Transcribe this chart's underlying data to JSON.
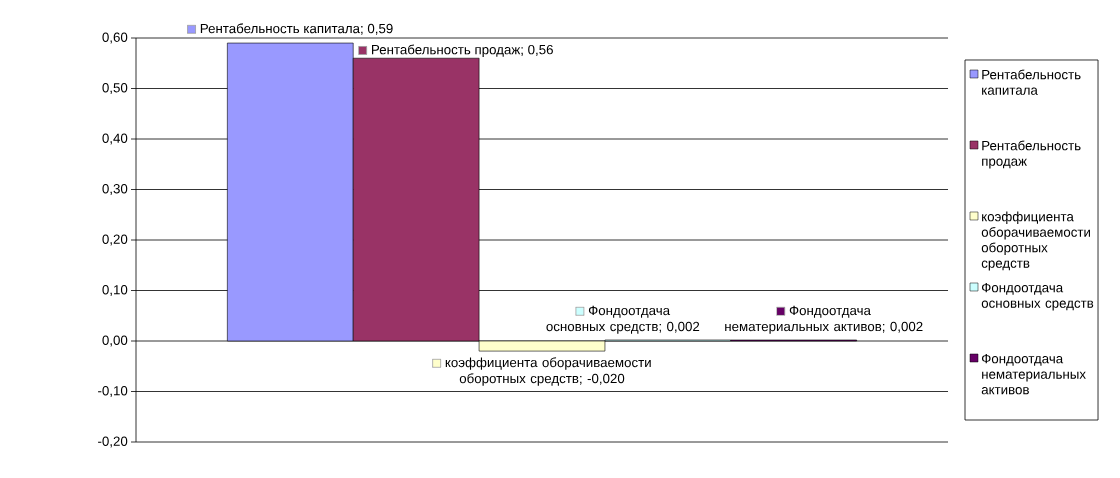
{
  "chart_data": {
    "type": "bar",
    "categories": [
      null
    ],
    "series": [
      {
        "name": "Рентабельность капитала",
        "color": "#9999ff",
        "values": [
          0.59
        ],
        "value_labels": [
          "Рентабельность капитала; 0,59"
        ]
      },
      {
        "name": "Рентабельность продаж",
        "color": "#993366",
        "values": [
          0.56
        ],
        "value_labels": [
          "Рентабельность продаж; 0,56"
        ]
      },
      {
        "name": "коэффициента оборачиваемости оборотных средств",
        "color": "#ffffcc",
        "values": [
          -0.02
        ],
        "value_labels": [
          "коэффициента оборачиваемости оборотных средств; -0,020"
        ]
      },
      {
        "name": "Фондоотдача основных средств",
        "color": "#ccffff",
        "values": [
          0.002
        ],
        "value_labels": [
          "Фондоотдача основных средств; 0,002"
        ]
      },
      {
        "name": "Фондоотдача нематериальных активов",
        "color": "#660066",
        "values": [
          0.002
        ],
        "value_labels": [
          "Фондоотдача нематериальных активов; 0,002"
        ]
      }
    ],
    "ylim": [
      -0.2,
      0.6
    ],
    "yticks": [
      {
        "value": -0.2,
        "label": "-0,20"
      },
      {
        "value": -0.1,
        "label": "-0,10"
      },
      {
        "value": 0,
        "label": "0,00"
      },
      {
        "value": 0.1,
        "label": "0,10"
      },
      {
        "value": 0.2,
        "label": "0,20"
      },
      {
        "value": 0.3,
        "label": "0,30"
      },
      {
        "value": 0.4,
        "label": "0,40"
      },
      {
        "value": 0.5,
        "label": "0,50"
      },
      {
        "value": 0.6,
        "label": "0,60"
      }
    ],
    "grid": "y",
    "legend": "right"
  }
}
